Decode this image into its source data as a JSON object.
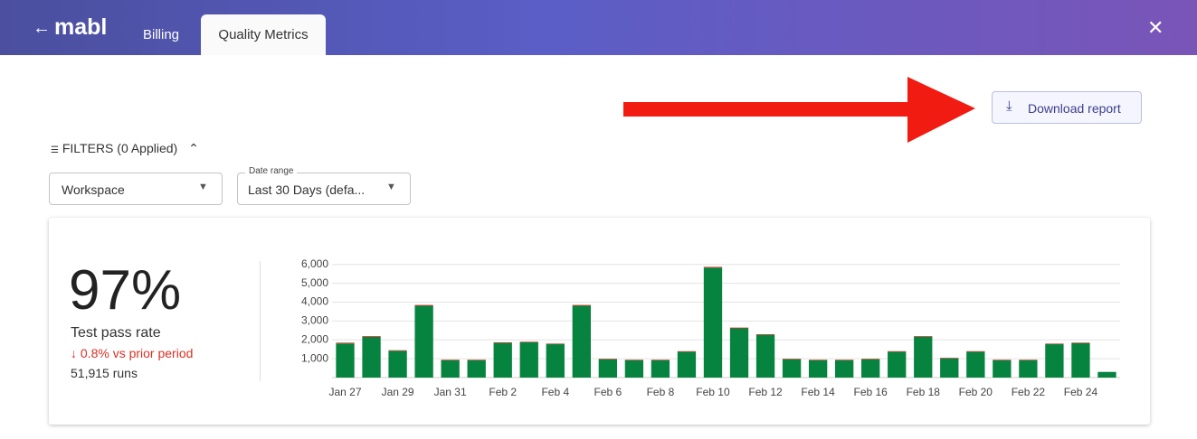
{
  "header": {
    "logo": "mabl",
    "tabs": [
      "Billing",
      "Quality Metrics"
    ]
  },
  "actions": {
    "download": "Download report"
  },
  "filters": {
    "title": "FILTERS",
    "applied": "(0 Applied)",
    "workspace": "Workspace",
    "date_range_label": "Date range",
    "date_range_value": "Last 30 Days (defa..."
  },
  "summary": {
    "value": "97%",
    "label": "Test pass rate",
    "change": "0.8% vs prior period",
    "runs": "51,915 runs"
  },
  "chart_data": {
    "type": "stacked-bar",
    "categories": [
      "Jan 27",
      null,
      "Jan 29",
      null,
      "Jan 31",
      null,
      "Feb 2",
      null,
      "Feb 4",
      null,
      "Feb 6",
      null,
      "Feb 8",
      null,
      "Feb 10",
      null,
      "Feb 12",
      null,
      "Feb 14",
      null,
      "Feb 16",
      null,
      "Feb 18",
      null,
      "Feb 20",
      null,
      "Feb 22",
      null,
      "Feb 24",
      null
    ],
    "series": [
      {
        "color": "#06843f",
        "values": [
          1810,
          2160,
          1420,
          3810,
          920,
          920,
          1840,
          1870,
          1770,
          3810,
          970,
          920,
          920,
          1370,
          5830,
          2610,
          2270,
          970,
          920,
          920,
          970,
          1370,
          2170,
          1020,
          1370,
          920,
          920,
          1770,
          1820,
          300
        ]
      },
      {
        "color": "#d93025",
        "values": [
          40,
          40,
          30,
          40,
          30,
          30,
          30,
          30,
          30,
          40,
          30,
          30,
          30,
          30,
          40,
          40,
          30,
          30,
          30,
          30,
          30,
          30,
          30,
          30,
          30,
          30,
          30,
          30,
          30,
          0
        ]
      }
    ],
    "ylim": [
      0,
      6800
    ],
    "yticks": [
      {
        "value": 1000,
        "label": "1,000"
      },
      {
        "value": 2000,
        "label": "2,000"
      },
      {
        "value": 3000,
        "label": "3,000"
      },
      {
        "value": 4000,
        "label": "4,000"
      },
      {
        "value": 5000,
        "label": "5,000"
      },
      {
        "value": 6000,
        "label": "6,000"
      }
    ],
    "grid": true
  }
}
